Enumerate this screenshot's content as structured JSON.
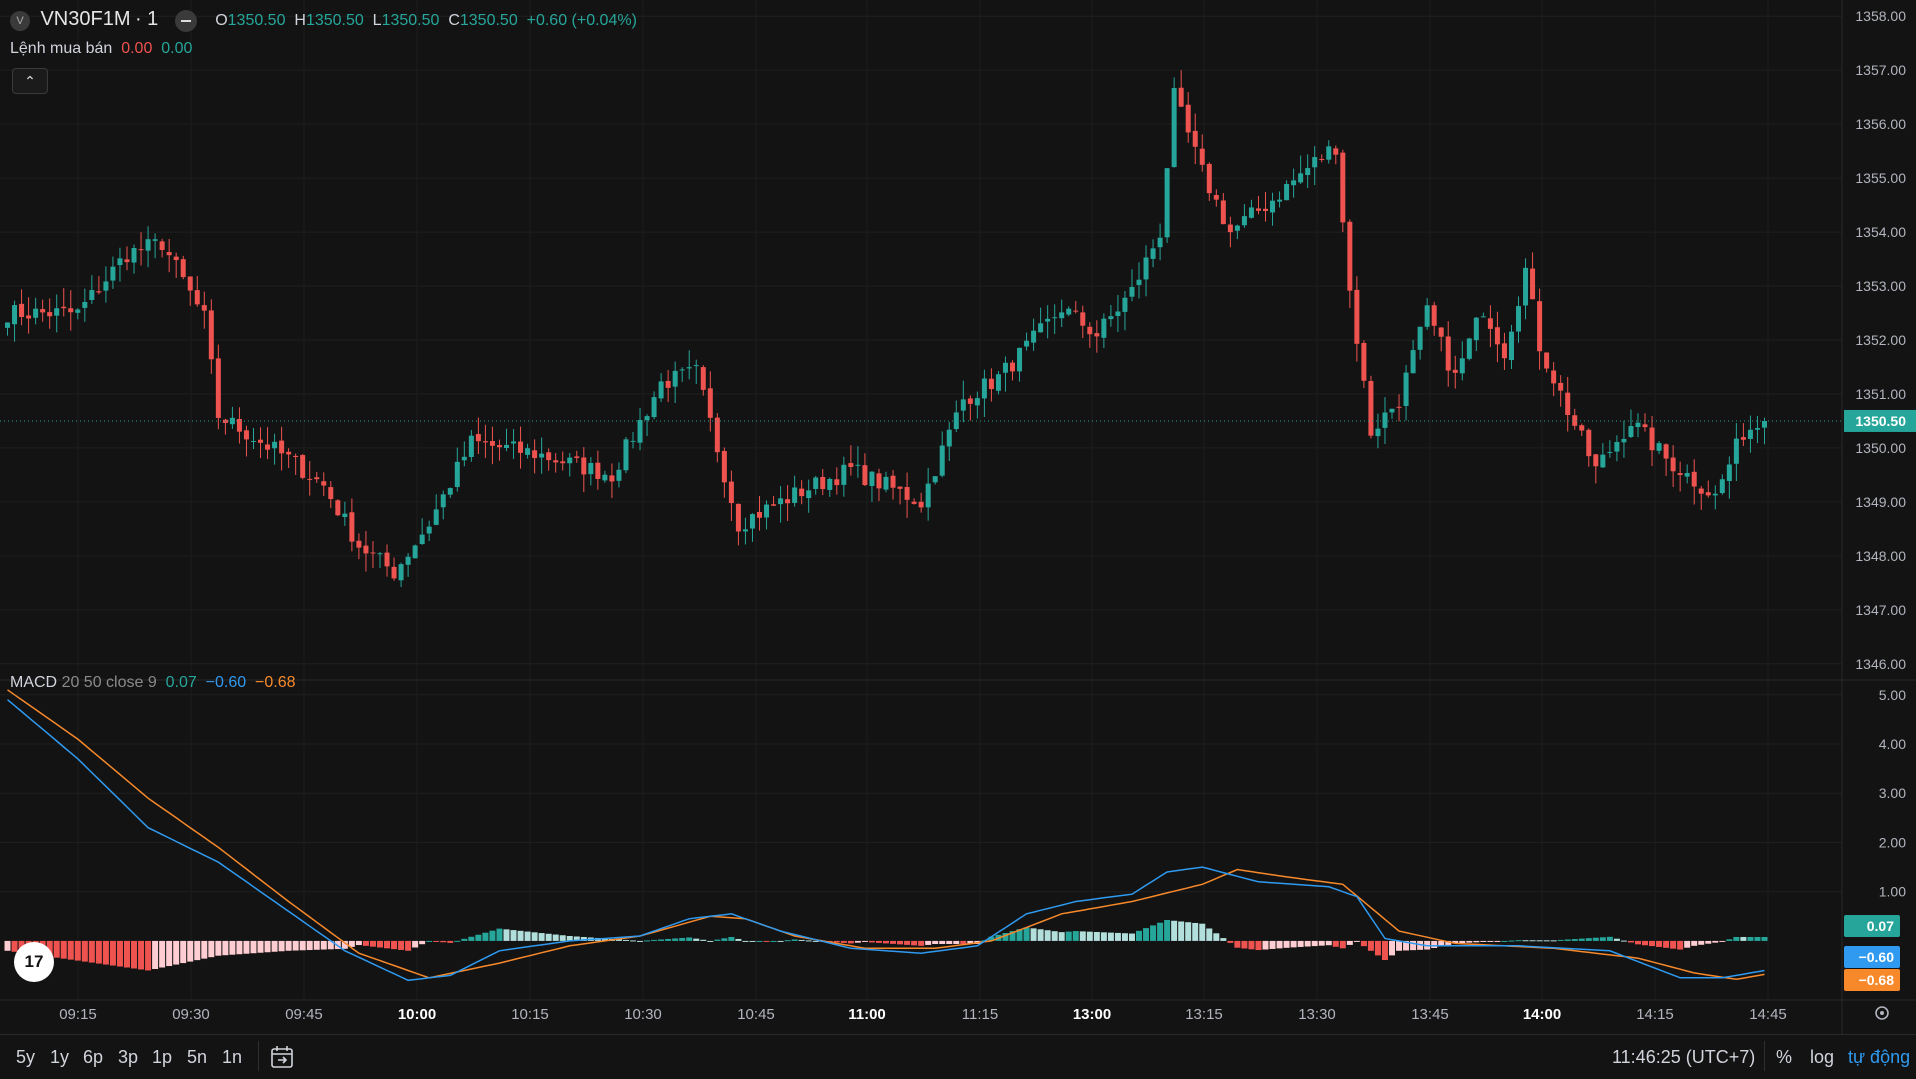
{
  "header": {
    "symbol": "VN30F1M",
    "interval": "1",
    "ohlc": {
      "o_label": "O",
      "o": "1350.50",
      "h_label": "H",
      "h": "1350.50",
      "l_label": "L",
      "l": "1350.50",
      "c_label": "C",
      "c": "1350.50"
    },
    "change": "+0.60 (+0.04%)",
    "indicator_label": "Lệnh mua bán",
    "indicator_v1": "0.00",
    "indicator_v2": "0.00",
    "collapse_icon": "chevron-up-icon"
  },
  "macd_legend": {
    "name": "MACD",
    "params": "20 50 close 9",
    "hist": "0.07",
    "macd": "−0.60",
    "signal": "−0.68"
  },
  "colors": {
    "up": "#26a69a",
    "down": "#ef5350",
    "macd_line": "#2f9af0",
    "signal_line": "#f7892b",
    "background": "#131313"
  },
  "chart_data": [
    {
      "type": "candlestick",
      "title": "VN30F1M · 1",
      "x_tick_labels": [
        "09:15",
        "09:30",
        "09:45",
        "10:00",
        "10:15",
        "10:30",
        "10:45",
        "11:00",
        "11:15",
        "13:00",
        "13:15",
        "13:30",
        "13:45",
        "14:00",
        "14:15",
        "14:45"
      ],
      "x_tick_bold": [
        "10:00",
        "11:00",
        "13:00",
        "14:00"
      ],
      "y_tick_labels": [
        "1358.00",
        "1357.00",
        "1356.00",
        "1355.00",
        "1354.00",
        "1353.00",
        "1352.00",
        "1351.00",
        "1350.00",
        "1349.00",
        "1348.00",
        "1347.00",
        "1346.00"
      ],
      "ylim": [
        1345.7,
        1358.3
      ],
      "last_price": "1350.50",
      "grid": true,
      "close_keypoints": [
        [
          0,
          1352.5
        ],
        [
          10,
          1352.5
        ],
        [
          17,
          1353.6
        ],
        [
          22,
          1353.8
        ],
        [
          28,
          1352.4
        ],
        [
          30,
          1350.6
        ],
        [
          40,
          1349.8
        ],
        [
          45,
          1349.3
        ],
        [
          50,
          1348.2
        ],
        [
          55,
          1347.7
        ],
        [
          60,
          1348.6
        ],
        [
          66,
          1350.1
        ],
        [
          75,
          1349.9
        ],
        [
          86,
          1349.5
        ],
        [
          93,
          1351.2
        ],
        [
          98,
          1351.4
        ],
        [
          104,
          1348.6
        ],
        [
          113,
          1349.2
        ],
        [
          120,
          1349.6
        ],
        [
          125,
          1349.3
        ],
        [
          130,
          1349.0
        ],
        [
          136,
          1350.9
        ],
        [
          141,
          1351.3
        ],
        [
          146,
          1352.0
        ],
        [
          150,
          1352.6
        ],
        [
          155,
          1352.1
        ],
        [
          160,
          1352.9
        ],
        [
          164,
          1354.0
        ],
        [
          166,
          1356.5
        ],
        [
          170,
          1355.1
        ],
        [
          174,
          1354.0
        ],
        [
          180,
          1354.6
        ],
        [
          186,
          1355.3
        ],
        [
          189,
          1355.6
        ],
        [
          191,
          1352.9
        ],
        [
          194,
          1350.3
        ],
        [
          198,
          1350.9
        ],
        [
          202,
          1352.5
        ],
        [
          206,
          1351.3
        ],
        [
          210,
          1352.6
        ],
        [
          213,
          1351.8
        ],
        [
          216,
          1353.3
        ],
        [
          218,
          1351.9
        ],
        [
          222,
          1350.7
        ],
        [
          226,
          1349.6
        ],
        [
          231,
          1350.5
        ],
        [
          236,
          1349.8
        ],
        [
          240,
          1349.4
        ],
        [
          243,
          1349.1
        ],
        [
          247,
          1350.3
        ],
        [
          250,
          1350.5
        ]
      ],
      "macd_panel": {
        "y_tick_labels": [
          "5.00",
          "4.00",
          "3.00",
          "2.00",
          "1.00"
        ],
        "ylim": [
          -1.2,
          5.3
        ],
        "last_hist": "0.07",
        "last_macd": "−0.60",
        "last_signal": "−0.68",
        "macd_keypoints": [
          [
            0,
            4.9
          ],
          [
            10,
            3.7
          ],
          [
            20,
            2.3
          ],
          [
            30,
            1.6
          ],
          [
            40,
            0.6
          ],
          [
            48,
            -0.2
          ],
          [
            57,
            -0.8
          ],
          [
            63,
            -0.7
          ],
          [
            70,
            -0.2
          ],
          [
            80,
            0.0
          ],
          [
            90,
            0.1
          ],
          [
            97,
            0.45
          ],
          [
            103,
            0.55
          ],
          [
            110,
            0.2
          ],
          [
            120,
            -0.15
          ],
          [
            130,
            -0.25
          ],
          [
            138,
            -0.1
          ],
          [
            145,
            0.55
          ],
          [
            152,
            0.8
          ],
          [
            160,
            0.95
          ],
          [
            165,
            1.4
          ],
          [
            170,
            1.5
          ],
          [
            178,
            1.2
          ],
          [
            188,
            1.1
          ],
          [
            192,
            0.9
          ],
          [
            196,
            0.05
          ],
          [
            202,
            -0.1
          ],
          [
            215,
            -0.1
          ],
          [
            228,
            -0.2
          ],
          [
            238,
            -0.75
          ],
          [
            244,
            -0.75
          ],
          [
            250,
            -0.6
          ]
        ],
        "signal_keypoints": [
          [
            0,
            5.1
          ],
          [
            10,
            4.1
          ],
          [
            20,
            2.9
          ],
          [
            30,
            1.9
          ],
          [
            40,
            0.8
          ],
          [
            50,
            -0.25
          ],
          [
            60,
            -0.75
          ],
          [
            70,
            -0.45
          ],
          [
            80,
            -0.1
          ],
          [
            90,
            0.1
          ],
          [
            100,
            0.5
          ],
          [
            105,
            0.45
          ],
          [
            112,
            0.1
          ],
          [
            122,
            -0.15
          ],
          [
            132,
            -0.15
          ],
          [
            140,
            0.0
          ],
          [
            150,
            0.55
          ],
          [
            160,
            0.8
          ],
          [
            170,
            1.15
          ],
          [
            175,
            1.45
          ],
          [
            182,
            1.3
          ],
          [
            190,
            1.15
          ],
          [
            198,
            0.2
          ],
          [
            206,
            -0.05
          ],
          [
            220,
            -0.15
          ],
          [
            232,
            -0.35
          ],
          [
            240,
            -0.65
          ],
          [
            246,
            -0.78
          ],
          [
            250,
            -0.68
          ]
        ]
      }
    }
  ],
  "time_axis": {
    "readout": "11:46:25 (UTC+7)",
    "settings_icon": "gear-icon"
  },
  "bottom_bar": {
    "ranges": [
      "5y",
      "1y",
      "6p",
      "3p",
      "1p",
      "5n",
      "1n"
    ],
    "goto_icon": "calendar-goto-icon",
    "clock": "11:46:25 (UTC+7)",
    "percent_label": "%",
    "log_label": "log",
    "auto_label": "tự động"
  }
}
